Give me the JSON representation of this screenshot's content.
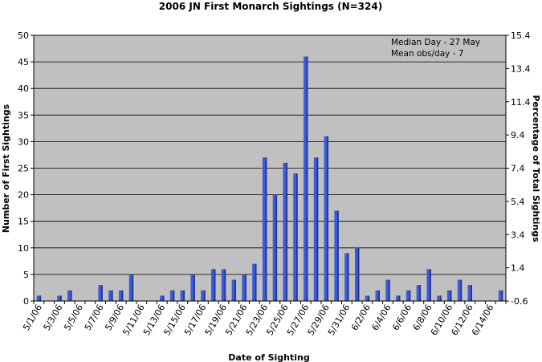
{
  "chart_data": {
    "type": "bar",
    "title": "2006 JN First Monarch Sightings (N=324)",
    "xlabel": "Date of Sighting",
    "ylabel": "Number of First Sightings",
    "y2label": "Percentage of Total Sightings",
    "ylim": [
      0,
      50
    ],
    "yticks": [
      0,
      5,
      10,
      15,
      20,
      25,
      30,
      35,
      40,
      45,
      50
    ],
    "y2ticks": [
      "-0.6",
      "1.4",
      "3.4",
      "5.4",
      "7.4",
      "9.4",
      "11.4",
      "13.4",
      "15.4"
    ],
    "grid": "horizontal",
    "bar_color": "#3b5bdb",
    "plot_background": "#c0c0c0",
    "annotations": [
      "Median Day - 27 May",
      "Mean obs/day - 7"
    ],
    "categories": [
      "5/1/06",
      "5/2/06",
      "5/3/06",
      "5/4/06",
      "5/5/06",
      "5/6/06",
      "5/7/06",
      "5/8/06",
      "5/9/06",
      "5/10/06",
      "5/11/06",
      "5/12/06",
      "5/13/06",
      "5/14/06",
      "5/15/06",
      "5/16/06",
      "5/17/06",
      "5/18/06",
      "5/19/06",
      "5/20/06",
      "5/21/06",
      "5/22/06",
      "5/23/06",
      "5/24/06",
      "5/25/06",
      "5/26/06",
      "5/27/06",
      "5/28/06",
      "5/29/06",
      "5/30/06",
      "5/31/06",
      "6/1/06",
      "6/2/06",
      "6/3/06",
      "6/4/06",
      "6/5/06",
      "6/6/06",
      "6/7/06",
      "6/8/06",
      "6/9/06",
      "6/10/06",
      "6/11/06",
      "6/12/06",
      "6/13/06",
      "6/14/06",
      "6/15/06"
    ],
    "tick_labels": [
      "5/1/06",
      "5/3/06",
      "5/5/06",
      "5/7/06",
      "5/9/06",
      "5/11/06",
      "5/13/06",
      "5/15/06",
      "5/17/06",
      "5/19/06",
      "5/21/06",
      "5/23/06",
      "5/25/06",
      "5/27/06",
      "5/29/06",
      "5/31/06",
      "6/2/06",
      "6/4/06",
      "6/6/06",
      "6/8/06",
      "6/10/06",
      "6/12/06",
      "6/14/06"
    ],
    "values": [
      1,
      0,
      1,
      2,
      0,
      0,
      3,
      2,
      2,
      5,
      0,
      0,
      1,
      2,
      2,
      5,
      2,
      6,
      6,
      4,
      5,
      7,
      27,
      20,
      26,
      24,
      46,
      27,
      31,
      17,
      9,
      10,
      1,
      2,
      4,
      1,
      2,
      3,
      6,
      1,
      2,
      4,
      3,
      0,
      0,
      2
    ]
  }
}
